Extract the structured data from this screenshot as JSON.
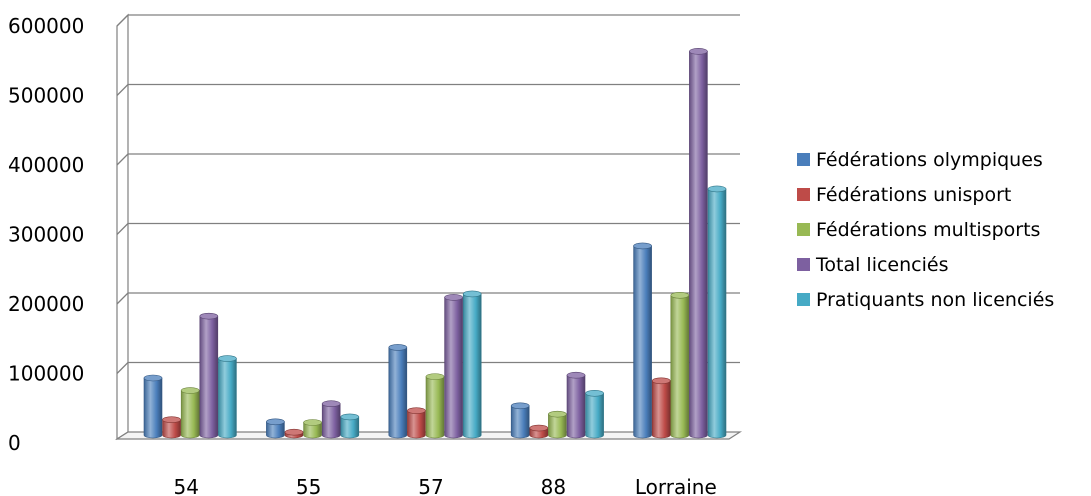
{
  "chart_data": {
    "type": "bar",
    "title": "",
    "xlabel": "",
    "ylabel": "",
    "ylim": [
      0,
      600000
    ],
    "yticks": [
      0,
      100000,
      200000,
      300000,
      400000,
      500000,
      600000
    ],
    "ytick_labels": [
      "0",
      "100000",
      "200000",
      "300000",
      "400000",
      "500000",
      "600000"
    ],
    "categories": [
      "54",
      "55",
      "57",
      "88",
      "Lorraine"
    ],
    "grid": true,
    "legend_position": "right",
    "series": [
      {
        "name": "Fédérations olympiques",
        "color": "#4a7ebb",
        "values": [
          82000,
          19000,
          126000,
          42000,
          272000
        ]
      },
      {
        "name": "Fédérations unisport",
        "color": "#be4b48",
        "values": [
          22000,
          4000,
          35000,
          10000,
          78000
        ]
      },
      {
        "name": "Fédérations multisports",
        "color": "#98b954",
        "values": [
          64000,
          18000,
          84000,
          30000,
          201000
        ]
      },
      {
        "name": "Total licenciés",
        "color": "#7d60a0",
        "values": [
          171000,
          45000,
          198000,
          86000,
          552000
        ]
      },
      {
        "name": "Pratiquants non licenciés",
        "color": "#46aac5",
        "values": [
          110000,
          26000,
          203000,
          60000,
          354000
        ]
      }
    ]
  }
}
